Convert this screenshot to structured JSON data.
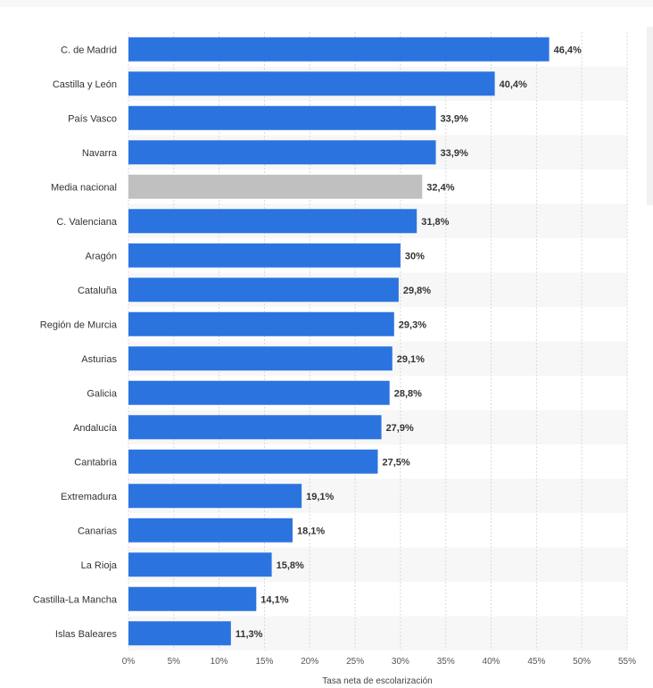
{
  "chart_data": {
    "type": "bar",
    "orientation": "horizontal",
    "title": "",
    "xlabel": "Tasa neta de escolarización",
    "ylabel": "",
    "xlim": [
      0,
      55
    ],
    "grid": true,
    "categories": [
      "C. de Madrid",
      "Castilla y León",
      "País Vasco",
      "Navarra",
      "Media nacional",
      "C. Valenciana",
      "Aragón",
      "Cataluña",
      "Región de Murcia",
      "Asturias",
      "Galicia",
      "Andalucía",
      "Cantabria",
      "Extremadura",
      "Canarias",
      "La Rioja",
      "Castilla-La Mancha",
      "Islas Baleares"
    ],
    "values": [
      46.4,
      40.4,
      33.9,
      33.9,
      32.4,
      31.8,
      30,
      29.8,
      29.3,
      29.1,
      28.8,
      27.9,
      27.5,
      19.1,
      18.1,
      15.8,
      14.1,
      11.3
    ],
    "value_labels": [
      "46,4%",
      "40,4%",
      "33,9%",
      "33,9%",
      "32,4%",
      "31,8%",
      "30%",
      "29,8%",
      "29,3%",
      "29,1%",
      "28,8%",
      "27,9%",
      "27,5%",
      "19,1%",
      "18,1%",
      "15,8%",
      "14,1%",
      "11,3%"
    ],
    "highlight_index": 4,
    "ticks": [
      "0%",
      "5%",
      "10%",
      "15%",
      "20%",
      "25%",
      "30%",
      "35%",
      "40%",
      "45%",
      "50%",
      "55%"
    ],
    "tick_values": [
      0,
      5,
      10,
      15,
      20,
      25,
      30,
      35,
      40,
      45,
      50,
      55
    ],
    "colors": {
      "bar": "#2b74e0",
      "highlight": "#c0c0c0",
      "band": "#f7f7f7",
      "grid": "#d9d9d9"
    }
  }
}
